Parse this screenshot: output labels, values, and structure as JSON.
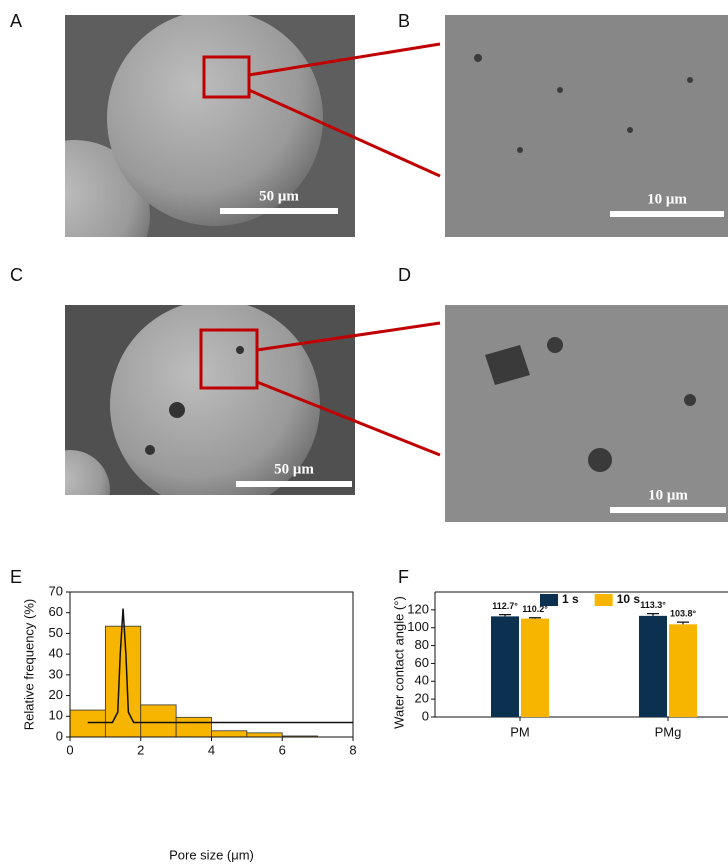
{
  "panels": [
    {
      "label": "A",
      "scale_bar": "50 μm"
    },
    {
      "label": "B",
      "scale_bar": "10 μm"
    },
    {
      "label": "C",
      "scale_bar": "50 μm"
    },
    {
      "label": "D",
      "scale_bar": "10 μm"
    },
    {
      "label": "E"
    },
    {
      "label": "F"
    }
  ],
  "chart_data": [
    {
      "type": "histogram",
      "xlabel": "Pore size (μm)",
      "ylabel": "Relative frequency (%)",
      "bins": [
        0,
        1,
        2,
        3,
        4,
        5,
        6,
        7
      ],
      "values": [
        13,
        53.5,
        15.5,
        9.5,
        3,
        2,
        0.5
      ],
      "color": "#f7b500",
      "xlim": [
        0,
        8
      ],
      "xticks": [
        0,
        2,
        4,
        6,
        8
      ],
      "ylim": [
        0,
        70
      ],
      "yticks": [
        0,
        10,
        20,
        30,
        40,
        50,
        60,
        70
      ],
      "fit": {
        "color": "#111111",
        "x": [
          0.5,
          1.2,
          1.35,
          1.42,
          1.5,
          1.58,
          1.65,
          1.8,
          8
        ],
        "values": [
          7,
          7,
          12,
          40,
          62,
          40,
          12,
          7,
          7
        ]
      }
    },
    {
      "type": "bar",
      "ylabel": "Water contact angle (°)",
      "categories": [
        "PM",
        "PMg"
      ],
      "series": [
        {
          "name": "1 s",
          "color": "#0c3150",
          "values": [
            112.7,
            113.3
          ],
          "errors": [
            2,
            2.5
          ],
          "value_labels": [
            "112.7°",
            "113.3°"
          ]
        },
        {
          "name": "10 s",
          "color": "#f7b500",
          "values": [
            110.2,
            103.8
          ],
          "errors": [
            1,
            2.5
          ],
          "value_labels": [
            "110.2°",
            "103.8°"
          ]
        }
      ],
      "ylim": [
        0,
        140
      ],
      "yticks": [
        0,
        20,
        40,
        60,
        80,
        100,
        120
      ],
      "legend": "top"
    }
  ]
}
